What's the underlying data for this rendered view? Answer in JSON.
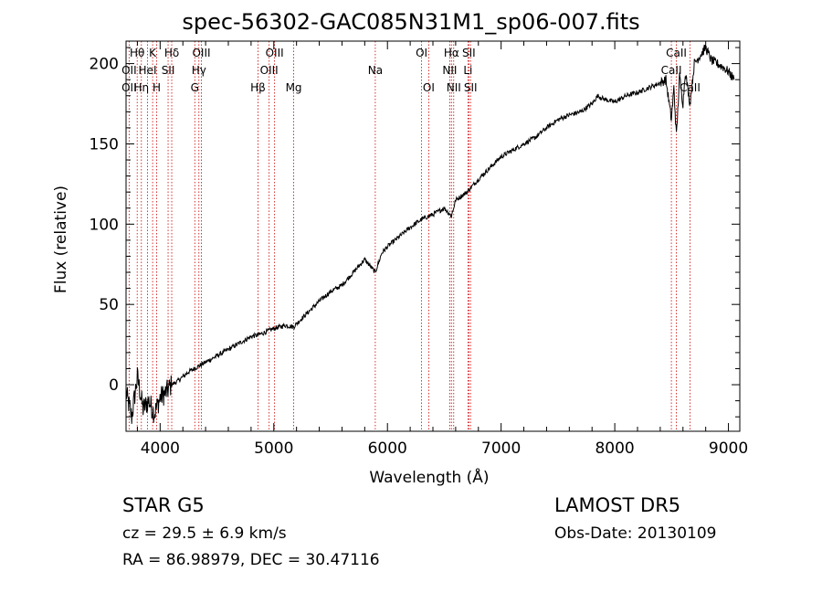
{
  "title": "spec-56302-GAC085N31M1_sp06-007.fits",
  "info": {
    "object_class": "STAR    G5",
    "cz": "cz = 29.5 ± 6.9 km/s",
    "radec": "RA =  86.98979, DEC =  30.47116",
    "survey": "LAMOST  DR5",
    "obs_date": "Obs-Date: 20130109"
  },
  "colors": {
    "spectrum": "#000000",
    "line_marker": "#cc0000",
    "axes": "#000000"
  },
  "chart_data": {
    "type": "line",
    "title": "spec-56302-GAC085N31M1_sp06-007.fits",
    "xlabel": "Wavelength (Å)",
    "ylabel": "Flux (relative)",
    "xlim": [
      3700,
      9100
    ],
    "ylim": [
      -29,
      214
    ],
    "x_ticks": [
      4000,
      5000,
      6000,
      7000,
      8000,
      9000
    ],
    "y_ticks": [
      0,
      50,
      100,
      150,
      200
    ],
    "grid": false,
    "series": [
      {
        "x": [
          3700,
          3750,
          3800,
          3850,
          3900,
          3950,
          4000,
          4050,
          4100,
          4150,
          4200,
          4250,
          4300,
          4350,
          4400,
          4450,
          4500,
          4600,
          4700,
          4800,
          4861,
          4900,
          5000,
          5100,
          5175,
          5200,
          5300,
          5400,
          5500,
          5600,
          5700,
          5800,
          5893,
          5950,
          6000,
          6100,
          6200,
          6300,
          6400,
          6500,
          6563,
          6600,
          6700,
          6800,
          6900,
          7000,
          7100,
          7200,
          7300,
          7400,
          7500,
          7600,
          7700,
          7800,
          7850,
          7900,
          8000,
          8100,
          8200,
          8300,
          8400,
          8450,
          8498,
          8520,
          8542,
          8570,
          8600,
          8620,
          8662,
          8700,
          8750,
          8800,
          8850,
          8900,
          8950,
          9000,
          9050
        ],
        "y": [
          -5,
          -20,
          5,
          -15,
          -10,
          -18,
          -8,
          -5,
          0,
          2,
          5,
          8,
          10,
          12,
          14,
          16,
          18,
          22,
          26,
          30,
          31,
          32,
          35,
          37,
          36,
          38,
          45,
          52,
          58,
          62,
          70,
          78,
          70,
          82,
          86,
          92,
          98,
          103,
          106,
          110,
          105,
          115,
          120,
          128,
          135,
          142,
          146,
          150,
          154,
          160,
          165,
          168,
          170,
          175,
          180,
          178,
          176,
          180,
          182,
          185,
          188,
          190,
          165,
          185,
          155,
          192,
          175,
          195,
          175,
          200,
          205,
          210,
          202,
          200,
          198,
          195,
          190
        ]
      }
    ],
    "line_markers": [
      {
        "label": "Hθ",
        "x": 3798,
        "row": 0
      },
      {
        "label": "OII",
        "x": 3727,
        "row": 1
      },
      {
        "label": "OII",
        "x": 3727,
        "row": 2
      },
      {
        "label": "K",
        "x": 3934,
        "row": 0
      },
      {
        "label": "HeI",
        "x": 3889,
        "row": 1
      },
      {
        "label": "Hη",
        "x": 3835,
        "row": 2
      },
      {
        "label": "H",
        "x": 3969,
        "row": 2
      },
      {
        "label": "SII",
        "x": 4070,
        "row": 1
      },
      {
        "label": "Hδ",
        "x": 4102,
        "row": 0
      },
      {
        "label": "OIII",
        "x": 4363,
        "row": 0
      },
      {
        "label": "Hγ",
        "x": 4341,
        "row": 1
      },
      {
        "label": "G",
        "x": 4305,
        "row": 2
      },
      {
        "label": "Hβ",
        "x": 4861,
        "row": 2
      },
      {
        "label": "OIII",
        "x": 5007,
        "row": 0
      },
      {
        "label": "OIII",
        "x": 4959,
        "row": 1
      },
      {
        "label": "Mg",
        "x": 5175,
        "row": 2
      },
      {
        "label": "Na",
        "x": 5893,
        "row": 1
      },
      {
        "label": "OI",
        "x": 6300,
        "row": 0
      },
      {
        "label": "OI",
        "x": 6363,
        "row": 2
      },
      {
        "label": "Hα",
        "x": 6563,
        "row": 0
      },
      {
        "label": "SII",
        "x": 6716,
        "row": 0
      },
      {
        "label": "NII",
        "x": 6548,
        "row": 1
      },
      {
        "label": "Li",
        "x": 6708,
        "row": 1
      },
      {
        "label": "NII",
        "x": 6583,
        "row": 2
      },
      {
        "label": "SII",
        "x": 6731,
        "row": 2
      },
      {
        "label": "CaII",
        "x": 8542,
        "row": 0
      },
      {
        "label": "CaII",
        "x": 8498,
        "row": 1
      },
      {
        "label": "CaII",
        "x": 8662,
        "row": 2
      }
    ]
  }
}
